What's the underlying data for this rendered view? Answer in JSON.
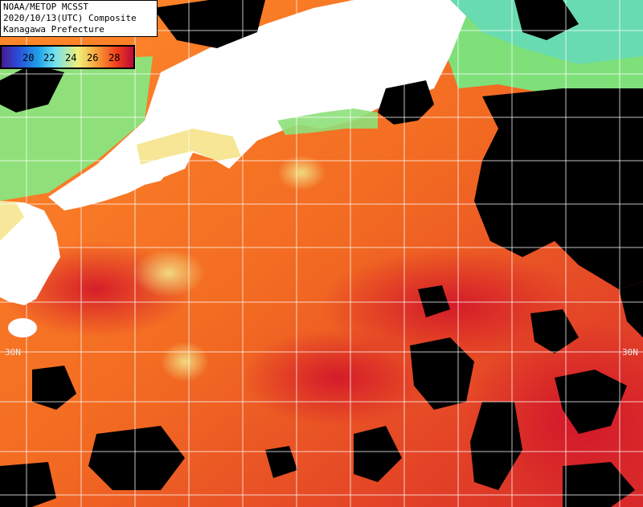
{
  "header": {
    "line1": "NOAA/METOP MCSST",
    "line2": "2020/10/13(UTC) Composite",
    "line3": "Kanagawa Prefecture"
  },
  "colorbar": {
    "ticks": [
      "20",
      "22",
      "24",
      "26",
      "28"
    ],
    "gradient_colors": [
      "#4a1a8c",
      "#2a4ad8",
      "#1fa0e8",
      "#6fe0f0",
      "#f0f07a",
      "#f7a23a",
      "#ef3a1a",
      "#b80a3a"
    ]
  },
  "grid": {
    "lat_label_left": "30N",
    "lat_label_right": "30N"
  },
  "colors": {
    "ocean_warm": "#f05a1e",
    "ocean_hot": "#d8202a",
    "ocean_mild": "#ff8a2a",
    "land": "#ffffff",
    "cloud": "#000000",
    "coastal_cool": "#8ee07a",
    "coastal_yellow": "#f5e38a"
  }
}
